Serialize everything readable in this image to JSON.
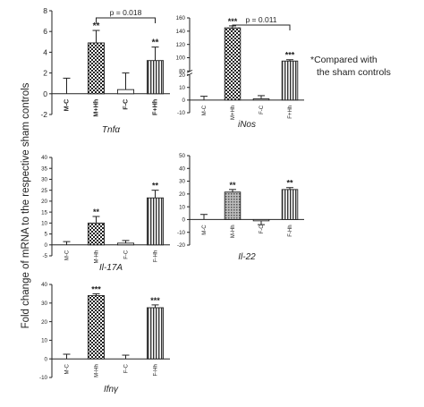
{
  "figure": {
    "ylabel": "Fold change of mRNA  to the respective sham controls",
    "note": "*Compared with the sham controls"
  },
  "chart_data": [
    {
      "type": "bar",
      "title": "Tnfα",
      "categories": [
        "M-C",
        "M+Hh",
        "F-C",
        "F+Hh"
      ],
      "values": [
        0,
        4.9,
        0.4,
        3.2
      ],
      "errors": [
        1.5,
        1.2,
        1.6,
        1.3
      ],
      "significance": [
        "",
        "**",
        "",
        "**"
      ],
      "patterns": [
        "none",
        "checker",
        "none",
        "hatch"
      ],
      "ylim": [
        -2,
        8
      ],
      "yticks": [
        -2,
        0,
        2,
        4,
        6,
        8
      ],
      "bracket": {
        "from": 1,
        "to": 3,
        "label": "p = 0.018"
      }
    },
    {
      "type": "bar",
      "title": "iNos",
      "categories": [
        "M-C",
        "M+Hh",
        "F-C",
        "F+Hh"
      ],
      "values": [
        0,
        145,
        1,
        95
      ],
      "errors": [
        3,
        3,
        2.5,
        2
      ],
      "significance": [
        "",
        "***",
        "",
        "***"
      ],
      "patterns": [
        "none",
        "checker",
        "none",
        "hatch"
      ],
      "ylim": [
        -10,
        160
      ],
      "yticks": [
        -10,
        0,
        10,
        20,
        80,
        100,
        120,
        140,
        160
      ],
      "axis_break": [
        20,
        80
      ],
      "bracket": {
        "from": 1,
        "to": 3,
        "label": "p = 0.011"
      }
    },
    {
      "type": "bar",
      "title": "Il-17A",
      "categories": [
        "M-C",
        "M-Hh",
        "F-C",
        "F-Hh"
      ],
      "values": [
        0,
        10,
        0.8,
        21.5
      ],
      "errors": [
        1.5,
        3,
        1.2,
        3.5
      ],
      "significance": [
        "",
        "**",
        "",
        "**"
      ],
      "patterns": [
        "none",
        "checker",
        "none",
        "hatch"
      ],
      "ylim": [
        -5,
        40
      ],
      "yticks": [
        -5,
        0,
        5,
        10,
        15,
        20,
        25,
        30,
        35,
        40
      ]
    },
    {
      "type": "bar",
      "title": "Il-22",
      "categories": [
        "M-C",
        "M-Hh",
        "F-C",
        "F-Hh"
      ],
      "values": [
        0,
        21.5,
        -1,
        23.5
      ],
      "errors": [
        4,
        2,
        3,
        1.5
      ],
      "significance": [
        "",
        "**",
        "",
        "**"
      ],
      "patterns": [
        "none",
        "dots",
        "none",
        "hatch"
      ],
      "ylim": [
        -20,
        50
      ],
      "yticks": [
        -20,
        -10,
        0,
        10,
        20,
        30,
        40,
        50
      ]
    },
    {
      "type": "bar",
      "title": "Ifnγ",
      "categories": [
        "M-C",
        "M-Hh",
        "F-C",
        "F-Hh"
      ],
      "values": [
        0,
        34,
        0,
        27.5
      ],
      "errors": [
        2.5,
        1,
        2,
        1.5
      ],
      "significance": [
        "",
        "***",
        "",
        "***"
      ],
      "patterns": [
        "none",
        "checker",
        "none",
        "hatch"
      ],
      "ylim": [
        -10,
        40
      ],
      "yticks": [
        -10,
        0,
        10,
        20,
        30,
        40
      ]
    }
  ]
}
